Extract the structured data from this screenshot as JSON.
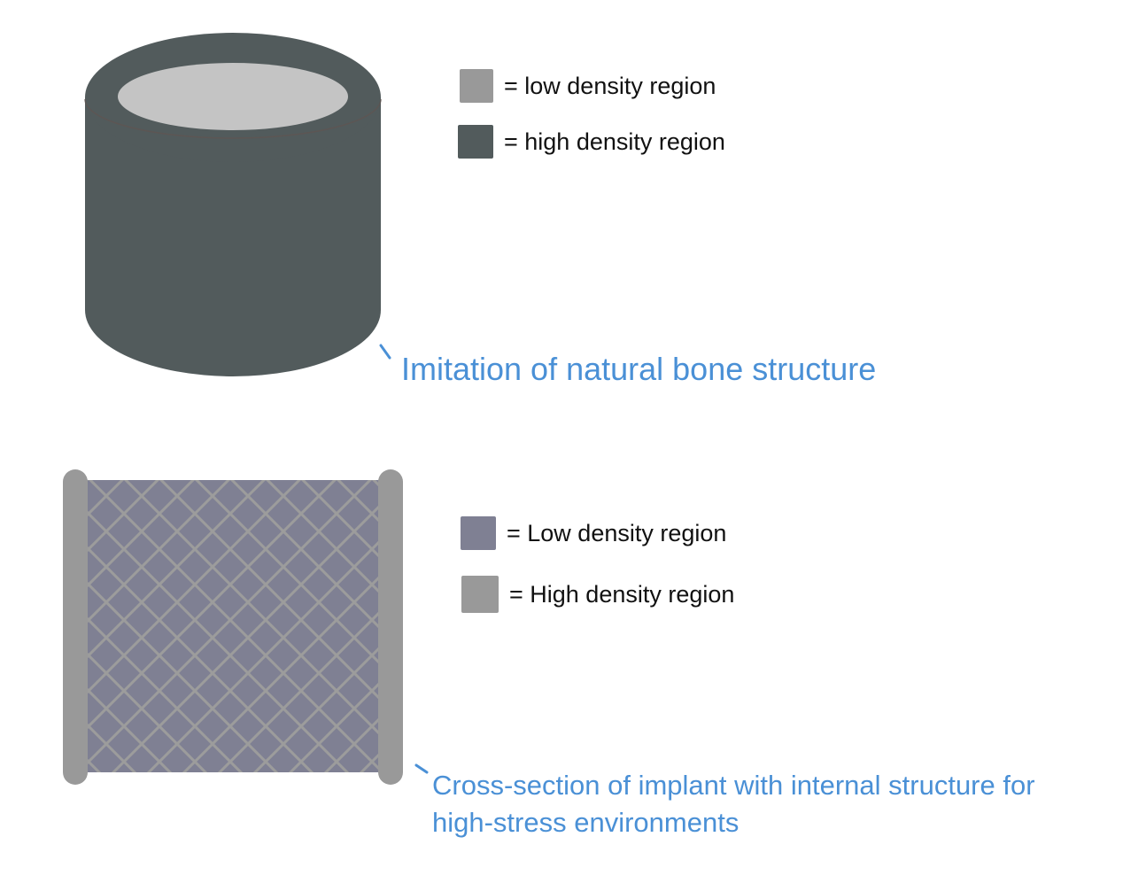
{
  "colors": {
    "low_density_top": "#999999",
    "high_density_top": "#525b5c",
    "cylinder_body": "#525b5c",
    "cylinder_core": "#c4c4c4",
    "lattice_fill": "#7f8093",
    "lattice_lines": "#9c9c9c",
    "end_caps": "#999999",
    "caption": "#4a90d6"
  },
  "top_figure": {
    "legend": [
      {
        "label": "= low density region",
        "color": "#999999"
      },
      {
        "label": "= high density region",
        "color": "#525b5c"
      }
    ],
    "caption": "Imitation of natural bone structure"
  },
  "bottom_figure": {
    "legend": [
      {
        "label": "= Low density region",
        "color": "#7f8093"
      },
      {
        "label": "= High density region",
        "color": "#999999"
      }
    ],
    "caption_line1": "Cross-section of implant with internal structure for",
    "caption_line2": "high-stress environments"
  }
}
